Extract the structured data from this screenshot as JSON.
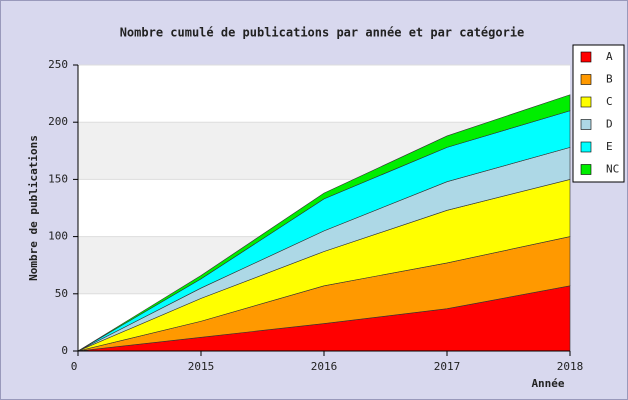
{
  "chart_data": {
    "type": "area",
    "stacked": true,
    "title": "Nombre cumulé de publications par année et par catégorie",
    "x_label": "Année",
    "y_label": "Nombre de publications",
    "categories": [
      "0",
      "2015",
      "2016",
      "2017",
      "2018"
    ],
    "series": [
      {
        "name": "A",
        "color": "#ff0000",
        "values": [
          0,
          12,
          24,
          37,
          57
        ]
      },
      {
        "name": "B",
        "color": "#ff9900",
        "values": [
          0,
          14,
          33,
          40,
          43
        ]
      },
      {
        "name": "C",
        "color": "#ffff00",
        "values": [
          0,
          20,
          30,
          46,
          50
        ]
      },
      {
        "name": "D",
        "color": "#add8e6",
        "values": [
          0,
          9,
          18,
          25,
          28
        ]
      },
      {
        "name": "E",
        "color": "#00ffff",
        "values": [
          0,
          8,
          28,
          30,
          32
        ]
      },
      {
        "name": "NC",
        "color": "#00ee00",
        "values": [
          0,
          3,
          5,
          10,
          14
        ]
      }
    ],
    "ylim": [
      0,
      250
    ],
    "yticks": [
      0,
      50,
      100,
      150,
      200,
      250
    ],
    "grid": true,
    "legend": "upper right"
  }
}
